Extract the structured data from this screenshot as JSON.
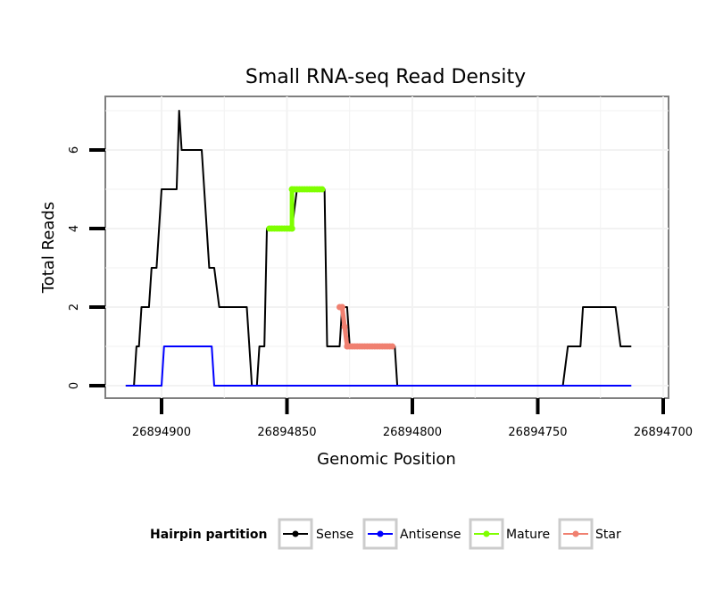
{
  "chart_data": {
    "type": "line",
    "title": "Small RNA-seq Read Density",
    "xlabel": "Genomic Position",
    "ylabel": "Total Reads",
    "x_reversed": true,
    "xlim": [
      26894701,
      26894925
    ],
    "ylim": [
      -0.3,
      7.2
    ],
    "x_ticks": [
      26894900,
      26894850,
      26894800,
      26894750,
      26894700
    ],
    "x_tick_labels": [
      "26894900",
      "26894850",
      "26894800",
      "26894750",
      "26894700"
    ],
    "y_ticks": [
      0,
      2,
      4,
      6
    ],
    "y_tick_labels": [
      "0",
      "2",
      "4",
      "6"
    ],
    "grid": true,
    "legend_position": "bottom",
    "legend_title": "Hairpin partition",
    "series": [
      {
        "name": "Sense",
        "color": "#000000",
        "points": [
          [
            26894914,
            0
          ],
          [
            26894911,
            0
          ],
          [
            26894910,
            1
          ],
          [
            26894909,
            1
          ],
          [
            26894908,
            2
          ],
          [
            26894905,
            2
          ],
          [
            26894904,
            3
          ],
          [
            26894902,
            3
          ],
          [
            26894900,
            5
          ],
          [
            26894894,
            5
          ],
          [
            26894893,
            7
          ],
          [
            26894892,
            6
          ],
          [
            26894884,
            6
          ],
          [
            26894881,
            3
          ],
          [
            26894879,
            3
          ],
          [
            26894877,
            2
          ],
          [
            26894866,
            2
          ],
          [
            26894864,
            0
          ],
          [
            26894862,
            0
          ],
          [
            26894861,
            1
          ],
          [
            26894859,
            1
          ],
          [
            26894858,
            4
          ],
          [
            26894848,
            4
          ],
          [
            26894846,
            5
          ],
          [
            26894835,
            5
          ],
          [
            26894834,
            1
          ],
          [
            26894829,
            1
          ],
          [
            26894828,
            2
          ],
          [
            26894826,
            2
          ],
          [
            26894825,
            1
          ],
          [
            26894807,
            1
          ],
          [
            26894806,
            0
          ],
          [
            26894740,
            0
          ],
          [
            26894738,
            1
          ],
          [
            26894733,
            1
          ],
          [
            26894732,
            2
          ],
          [
            26894719,
            2
          ],
          [
            26894717,
            1
          ],
          [
            26894713,
            1
          ]
        ]
      },
      {
        "name": "Antisense",
        "color": "#0000ff",
        "points": [
          [
            26894914,
            0
          ],
          [
            26894900,
            0
          ],
          [
            26894899,
            1
          ],
          [
            26894880,
            1
          ],
          [
            26894879,
            0
          ],
          [
            26894713,
            0
          ]
        ]
      },
      {
        "name": "Mature",
        "color": "#7fff00",
        "points": [
          [
            26894857,
            4
          ],
          [
            26894848,
            4
          ],
          [
            26894848,
            5
          ],
          [
            26894836,
            5
          ]
        ]
      },
      {
        "name": "Star",
        "color": "#f08070",
        "points": [
          [
            26894829,
            2
          ],
          [
            26894828,
            2
          ],
          [
            26894826,
            1
          ],
          [
            26894808,
            1
          ]
        ]
      }
    ]
  }
}
